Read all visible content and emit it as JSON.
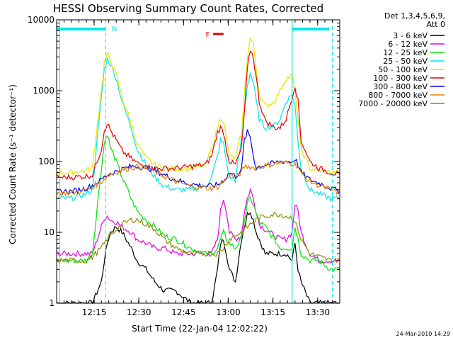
{
  "chart_data": {
    "type": "line",
    "title": "HESSI Observing Summary Count Rates, Corrected",
    "xlabel": "Start Time (22-Jan-04 12:02:22)",
    "ylabel": "Corrected Count Rate (s⁻¹ detector⁻¹)",
    "x_unit": "minutes after 12:02:22",
    "xlim": [
      0,
      95
    ],
    "ylim": [
      1,
      10000
    ],
    "yscale": "log",
    "x_ticks": [
      {
        "label": "12:15",
        "x": 12.6
      },
      {
        "label": "12:30",
        "x": 27.6
      },
      {
        "label": "12:45",
        "x": 42.6
      },
      {
        "label": "13:00",
        "x": 57.6
      },
      {
        "label": "13:15",
        "x": 72.6
      },
      {
        "label": "13:30",
        "x": 87.6
      }
    ],
    "y_ticks": [
      {
        "label": "1",
        "y": 1
      },
      {
        "label": "10",
        "y": 10
      },
      {
        "label": "100",
        "y": 100
      },
      {
        "label": "1000",
        "y": 1000
      },
      {
        "label": "10000",
        "y": 10000
      }
    ],
    "legend_header": [
      "Det 1,3,4,5,6,9,",
      "Att 0"
    ],
    "annotations": {
      "night_marker": "N",
      "flare_marker": "F"
    },
    "footer_date": "24-Mar-2010 14:29",
    "x": [
      0,
      5,
      10,
      12,
      15,
      16,
      17,
      18,
      20,
      22,
      25,
      27,
      30,
      33,
      36,
      40,
      45,
      50,
      52,
      54,
      55,
      56,
      57,
      58,
      60,
      62,
      63,
      64,
      65,
      66,
      67,
      68,
      70,
      73,
      75,
      77,
      79,
      80,
      81,
      82,
      85,
      88,
      92,
      95
    ],
    "series": [
      {
        "name": "3 - 6 keV",
        "color": "#000000",
        "values": [
          1,
          1,
          1,
          1,
          2,
          4,
          7,
          10,
          12,
          10,
          6,
          4,
          3,
          2,
          1.5,
          1.5,
          1,
          1,
          1,
          3,
          7,
          8,
          5,
          3,
          2,
          8,
          12,
          18,
          20,
          15,
          10,
          8,
          5,
          5,
          5,
          5,
          4,
          7,
          3,
          2,
          1,
          1,
          1,
          1
        ]
      },
      {
        "name": "6 - 12 keV",
        "color": "#e600e6",
        "values": [
          5,
          5,
          5,
          5,
          12,
          16,
          17,
          15,
          14,
          12,
          10,
          8,
          7,
          6,
          6,
          5,
          5,
          5,
          5,
          8,
          20,
          30,
          20,
          10,
          8,
          9,
          20,
          30,
          40,
          30,
          20,
          13,
          11,
          9,
          8,
          8,
          10,
          25,
          20,
          10,
          5,
          4,
          4,
          4
        ]
      },
      {
        "name": "12 - 25 keV",
        "color": "#00e600",
        "values": [
          4,
          4,
          4,
          5,
          80,
          180,
          250,
          160,
          100,
          60,
          30,
          20,
          15,
          12,
          9,
          8,
          6,
          5,
          5,
          6,
          8,
          10,
          8,
          7,
          6,
          8,
          15,
          25,
          30,
          25,
          18,
          14,
          12,
          8,
          6,
          6,
          6,
          12,
          8,
          5,
          4,
          4,
          3,
          3
        ]
      },
      {
        "name": "25 - 50 keV",
        "color": "#00e6e6",
        "values": [
          30,
          30,
          35,
          40,
          800,
          2000,
          2800,
          2400,
          1500,
          700,
          300,
          150,
          90,
          60,
          45,
          40,
          40,
          45,
          60,
          120,
          200,
          180,
          100,
          60,
          55,
          200,
          500,
          1200,
          1800,
          1300,
          700,
          400,
          300,
          320,
          400,
          700,
          900,
          600,
          200,
          80,
          40,
          35,
          30,
          30
        ]
      },
      {
        "name": "50 - 100 keV",
        "color": "#e6e600",
        "values": [
          70,
          70,
          75,
          80,
          1000,
          2500,
          3200,
          2800,
          1700,
          800,
          350,
          180,
          110,
          90,
          80,
          80,
          80,
          90,
          150,
          300,
          420,
          380,
          200,
          120,
          110,
          250,
          900,
          3000,
          5500,
          4500,
          2000,
          900,
          600,
          700,
          1000,
          1500,
          1600,
          1000,
          400,
          150,
          80,
          75,
          70,
          70
        ]
      },
      {
        "name": "100 - 300 keV",
        "color": "#e60000",
        "values": [
          60,
          60,
          62,
          65,
          150,
          280,
          350,
          280,
          200,
          140,
          110,
          95,
          85,
          80,
          80,
          80,
          85,
          90,
          120,
          260,
          300,
          260,
          150,
          100,
          90,
          150,
          500,
          2000,
          3800,
          3000,
          1500,
          700,
          380,
          300,
          300,
          400,
          800,
          1200,
          700,
          200,
          100,
          80,
          70,
          65
        ]
      },
      {
        "name": "300 - 800 keV",
        "color": "#0000e6",
        "values": [
          38,
          38,
          42,
          46,
          55,
          60,
          65,
          68,
          72,
          78,
          85,
          86,
          82,
          75,
          65,
          55,
          48,
          45,
          45,
          47,
          50,
          55,
          60,
          70,
          62,
          75,
          200,
          260,
          220,
          120,
          80,
          85,
          90,
          95,
          100,
          100,
          100,
          110,
          90,
          70,
          55,
          50,
          42,
          38
        ]
      },
      {
        "name": "800 - 7000 keV",
        "color": "#e68000",
        "values": [
          36,
          36,
          40,
          44,
          52,
          57,
          62,
          66,
          70,
          76,
          82,
          84,
          80,
          72,
          62,
          52,
          45,
          42,
          42,
          44,
          47,
          52,
          57,
          66,
          60,
          70,
          85,
          85,
          84,
          82,
          82,
          84,
          88,
          92,
          96,
          96,
          95,
          92,
          85,
          68,
          52,
          46,
          40,
          36
        ]
      },
      {
        "name": "7000 - 20000 keV",
        "color": "#8b8b00",
        "values": [
          4,
          4,
          4,
          4.5,
          6,
          7,
          8,
          9,
          11,
          13,
          15,
          15,
          13,
          11,
          8,
          6,
          5,
          5,
          5,
          5,
          5.5,
          6,
          7,
          8,
          9,
          10,
          11,
          12,
          13,
          14,
          15,
          16,
          17,
          18,
          18,
          17,
          16,
          14,
          11,
          8,
          5,
          4.5,
          4,
          4
        ]
      }
    ]
  }
}
